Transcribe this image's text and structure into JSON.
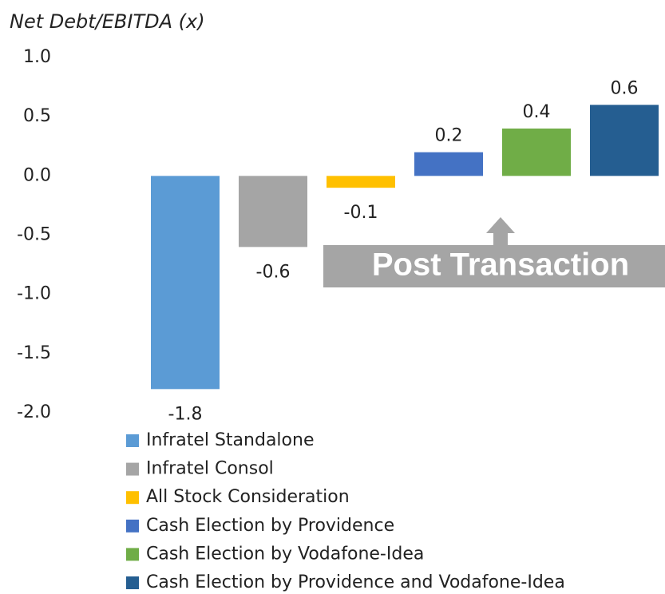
{
  "chart_data": {
    "type": "bar",
    "title": "Net Debt/EBITDA (x)",
    "categories": [
      "Infratel Standalone",
      "Infratel Consol",
      "All Stock Consideration",
      "Cash Election by Providence",
      "Cash Election by Vodafone-Idea",
      "Cash Election by Providence and Vodafone-Idea"
    ],
    "values": [
      -1.8,
      -0.6,
      -0.1,
      0.2,
      0.4,
      0.6
    ],
    "colors": [
      "#5b9bd5",
      "#a5a5a5",
      "#ffc000",
      "#4472c4",
      "#70ad47",
      "#255e91"
    ],
    "ylim": [
      -2.0,
      1.0
    ],
    "yticks": [
      {
        "value": 1.0,
        "label": "1.0"
      },
      0.5,
      {
        "value": 0.0,
        "label": "0.0"
      },
      -0.5,
      {
        "value": -1.0,
        "label": "-1.0"
      },
      {
        "value": -1.5,
        "label": "-1.5"
      },
      {
        "value": -2.0,
        "label": "-2.0"
      }
    ],
    "grid": false,
    "legend": "bottom",
    "annotation": "Post Transaction"
  }
}
